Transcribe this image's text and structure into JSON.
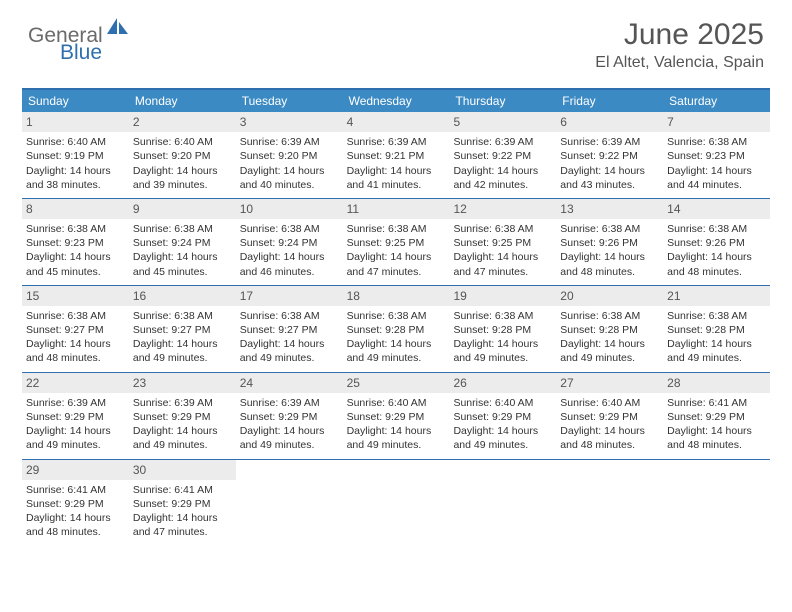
{
  "logo": {
    "part1": "General",
    "part2": "Blue"
  },
  "title": "June 2025",
  "location": "El Altet, Valencia, Spain",
  "colors": {
    "header_bar": "#3b8ac4",
    "week_divider": "#2f6fb0",
    "daynum_bg": "#ececec",
    "text": "#333333",
    "logo_gray": "#6a6a6a",
    "logo_blue": "#2f6fb0"
  },
  "weekdays": [
    "Sunday",
    "Monday",
    "Tuesday",
    "Wednesday",
    "Thursday",
    "Friday",
    "Saturday"
  ],
  "weeks": [
    [
      {
        "n": "1",
        "sr": "6:40 AM",
        "ss": "9:19 PM",
        "dl": "14 hours and 38 minutes."
      },
      {
        "n": "2",
        "sr": "6:40 AM",
        "ss": "9:20 PM",
        "dl": "14 hours and 39 minutes."
      },
      {
        "n": "3",
        "sr": "6:39 AM",
        "ss": "9:20 PM",
        "dl": "14 hours and 40 minutes."
      },
      {
        "n": "4",
        "sr": "6:39 AM",
        "ss": "9:21 PM",
        "dl": "14 hours and 41 minutes."
      },
      {
        "n": "5",
        "sr": "6:39 AM",
        "ss": "9:22 PM",
        "dl": "14 hours and 42 minutes."
      },
      {
        "n": "6",
        "sr": "6:39 AM",
        "ss": "9:22 PM",
        "dl": "14 hours and 43 minutes."
      },
      {
        "n": "7",
        "sr": "6:38 AM",
        "ss": "9:23 PM",
        "dl": "14 hours and 44 minutes."
      }
    ],
    [
      {
        "n": "8",
        "sr": "6:38 AM",
        "ss": "9:23 PM",
        "dl": "14 hours and 45 minutes."
      },
      {
        "n": "9",
        "sr": "6:38 AM",
        "ss": "9:24 PM",
        "dl": "14 hours and 45 minutes."
      },
      {
        "n": "10",
        "sr": "6:38 AM",
        "ss": "9:24 PM",
        "dl": "14 hours and 46 minutes."
      },
      {
        "n": "11",
        "sr": "6:38 AM",
        "ss": "9:25 PM",
        "dl": "14 hours and 47 minutes."
      },
      {
        "n": "12",
        "sr": "6:38 AM",
        "ss": "9:25 PM",
        "dl": "14 hours and 47 minutes."
      },
      {
        "n": "13",
        "sr": "6:38 AM",
        "ss": "9:26 PM",
        "dl": "14 hours and 48 minutes."
      },
      {
        "n": "14",
        "sr": "6:38 AM",
        "ss": "9:26 PM",
        "dl": "14 hours and 48 minutes."
      }
    ],
    [
      {
        "n": "15",
        "sr": "6:38 AM",
        "ss": "9:27 PM",
        "dl": "14 hours and 48 minutes."
      },
      {
        "n": "16",
        "sr": "6:38 AM",
        "ss": "9:27 PM",
        "dl": "14 hours and 49 minutes."
      },
      {
        "n": "17",
        "sr": "6:38 AM",
        "ss": "9:27 PM",
        "dl": "14 hours and 49 minutes."
      },
      {
        "n": "18",
        "sr": "6:38 AM",
        "ss": "9:28 PM",
        "dl": "14 hours and 49 minutes."
      },
      {
        "n": "19",
        "sr": "6:38 AM",
        "ss": "9:28 PM",
        "dl": "14 hours and 49 minutes."
      },
      {
        "n": "20",
        "sr": "6:38 AM",
        "ss": "9:28 PM",
        "dl": "14 hours and 49 minutes."
      },
      {
        "n": "21",
        "sr": "6:38 AM",
        "ss": "9:28 PM",
        "dl": "14 hours and 49 minutes."
      }
    ],
    [
      {
        "n": "22",
        "sr": "6:39 AM",
        "ss": "9:29 PM",
        "dl": "14 hours and 49 minutes."
      },
      {
        "n": "23",
        "sr": "6:39 AM",
        "ss": "9:29 PM",
        "dl": "14 hours and 49 minutes."
      },
      {
        "n": "24",
        "sr": "6:39 AM",
        "ss": "9:29 PM",
        "dl": "14 hours and 49 minutes."
      },
      {
        "n": "25",
        "sr": "6:40 AM",
        "ss": "9:29 PM",
        "dl": "14 hours and 49 minutes."
      },
      {
        "n": "26",
        "sr": "6:40 AM",
        "ss": "9:29 PM",
        "dl": "14 hours and 49 minutes."
      },
      {
        "n": "27",
        "sr": "6:40 AM",
        "ss": "9:29 PM",
        "dl": "14 hours and 48 minutes."
      },
      {
        "n": "28",
        "sr": "6:41 AM",
        "ss": "9:29 PM",
        "dl": "14 hours and 48 minutes."
      }
    ],
    [
      {
        "n": "29",
        "sr": "6:41 AM",
        "ss": "9:29 PM",
        "dl": "14 hours and 48 minutes."
      },
      {
        "n": "30",
        "sr": "6:41 AM",
        "ss": "9:29 PM",
        "dl": "14 hours and 47 minutes."
      },
      null,
      null,
      null,
      null,
      null
    ]
  ],
  "labels": {
    "sunrise": "Sunrise:",
    "sunset": "Sunset:",
    "daylight": "Daylight:"
  }
}
